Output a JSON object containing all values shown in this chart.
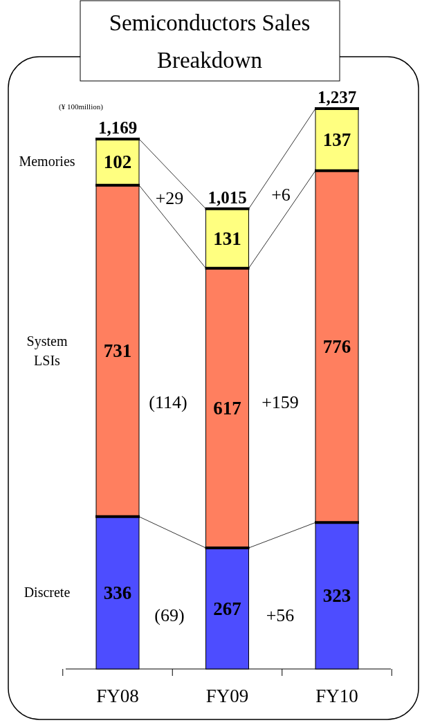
{
  "chart_data": {
    "type": "bar",
    "title": "Semiconductors Sales Breakdown",
    "stacked": true,
    "data_labels": true,
    "categories": [
      "FY08",
      "FY09",
      "FY10"
    ],
    "series": [
      {
        "name": "Discrete",
        "color": "#4d4dff",
        "values": [
          336,
          267,
          323
        ]
      },
      {
        "name": "System LSIs",
        "color": "#ff7f5f",
        "values": [
          731,
          617,
          776
        ]
      },
      {
        "name": "Memories",
        "color": "#ffff80",
        "values": [
          102,
          131,
          137
        ]
      }
    ],
    "totals": [
      "1,169",
      "1,015",
      "1,237"
    ],
    "annotations": [
      "(¥ 100million)",
      "+29",
      "+6",
      "(114)",
      "+159",
      "(69)",
      "+56"
    ],
    "legend": false
  }
}
